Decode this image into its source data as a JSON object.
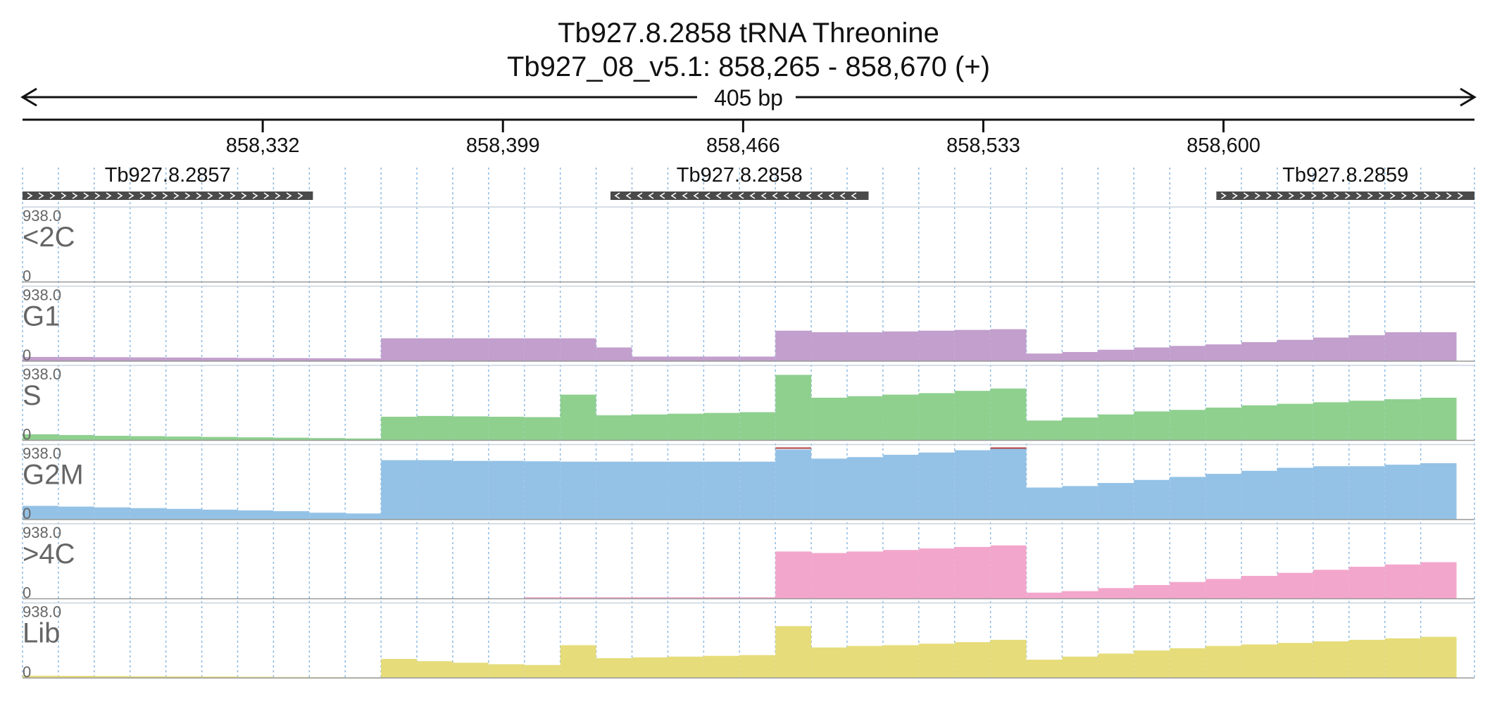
{
  "header": {
    "title_line1": "Tb927.8.2858  tRNA Threonine",
    "title_line2": "Tb927_08_v5.1: 858,265 - 858,670 (+)",
    "span_label": "405 bp"
  },
  "chart_data": {
    "type": "area",
    "region": {
      "chromosome": "Tb927_08_v5.1",
      "start": 858265,
      "end": 858670,
      "strand": "+"
    },
    "ruler_ticks": [
      {
        "pos": 858332,
        "label": "858,332"
      },
      {
        "pos": 858399,
        "label": "858,399"
      },
      {
        "pos": 858466,
        "label": "858,466"
      },
      {
        "pos": 858533,
        "label": "858,533"
      },
      {
        "pos": 858600,
        "label": "858,600"
      }
    ],
    "genes": [
      {
        "name": "Tb927.8.2857",
        "start": 858265,
        "end": 858346,
        "strand": "+"
      },
      {
        "name": "Tb927.8.2858",
        "start": 858429,
        "end": 858501,
        "strand": "-"
      },
      {
        "name": "Tb927.8.2859",
        "start": 858598,
        "end": 858670,
        "strand": "+"
      }
    ],
    "bin_size_bp": 10,
    "bin_starts": [
      858265,
      858275,
      858285,
      858295,
      858305,
      858315,
      858325,
      858335,
      858345,
      858355,
      858365,
      858375,
      858385,
      858395,
      858405,
      858415,
      858425,
      858435,
      858445,
      858455,
      858465,
      858475,
      858485,
      858495,
      858505,
      858515,
      858525,
      858535,
      858545,
      858555,
      858565,
      858575,
      858585,
      858595,
      858605,
      858615,
      858625,
      858635,
      858645,
      858655
    ],
    "ylim": [
      0,
      938.0
    ],
    "series": [
      {
        "name": "<2C",
        "color": "#c29fcc",
        "values": [
          0,
          0,
          0,
          0,
          0,
          0,
          0,
          0,
          0,
          0,
          0,
          0,
          0,
          0,
          0,
          0,
          0,
          0,
          0,
          0,
          0,
          0,
          0,
          0,
          0,
          0,
          0,
          0,
          0,
          0,
          0,
          0,
          0,
          0,
          0,
          0,
          0,
          0,
          0,
          0
        ]
      },
      {
        "name": "G1",
        "color": "#c29fcc",
        "values": [
          55,
          55,
          52,
          50,
          48,
          45,
          42,
          40,
          38,
          36,
          300,
          300,
          300,
          300,
          300,
          300,
          180,
          60,
          60,
          60,
          60,
          400,
          380,
          380,
          390,
          400,
          410,
          420,
          100,
          120,
          150,
          180,
          200,
          220,
          250,
          280,
          310,
          340,
          380,
          380
        ]
      },
      {
        "name": "S",
        "color": "#8fd08f",
        "values": [
          80,
          70,
          60,
          55,
          50,
          45,
          40,
          35,
          30,
          25,
          310,
          320,
          315,
          310,
          305,
          600,
          330,
          340,
          350,
          360,
          370,
          860,
          560,
          580,
          600,
          620,
          650,
          680,
          260,
          300,
          340,
          380,
          400,
          430,
          460,
          480,
          500,
          520,
          540,
          560
        ]
      },
      {
        "name": "G2M",
        "color": "#94c2e6",
        "values": [
          180,
          170,
          160,
          150,
          140,
          130,
          120,
          110,
          90,
          80,
          780,
          780,
          770,
          770,
          765,
          760,
          760,
          760,
          760,
          760,
          760,
          920,
          800,
          820,
          850,
          880,
          910,
          960,
          420,
          440,
          480,
          520,
          560,
          600,
          640,
          680,
          700,
          700,
          720,
          740
        ]
      },
      {
        "name": ">4C",
        "color": "#f3a6cb",
        "values": [
          0,
          0,
          0,
          0,
          0,
          0,
          0,
          0,
          0,
          0,
          0,
          0,
          0,
          0,
          20,
          20,
          20,
          20,
          20,
          20,
          20,
          620,
          600,
          620,
          640,
          660,
          680,
          700,
          80,
          100,
          140,
          180,
          220,
          260,
          300,
          340,
          380,
          420,
          450,
          480
        ]
      },
      {
        "name": "Lib",
        "color": "#e6dc7a",
        "values": [
          30,
          28,
          25,
          22,
          20,
          18,
          15,
          12,
          10,
          8,
          250,
          220,
          200,
          180,
          170,
          430,
          260,
          270,
          280,
          290,
          300,
          680,
          400,
          420,
          430,
          450,
          470,
          500,
          240,
          280,
          320,
          360,
          390,
          420,
          440,
          460,
          480,
          500,
          520,
          540
        ]
      }
    ]
  }
}
